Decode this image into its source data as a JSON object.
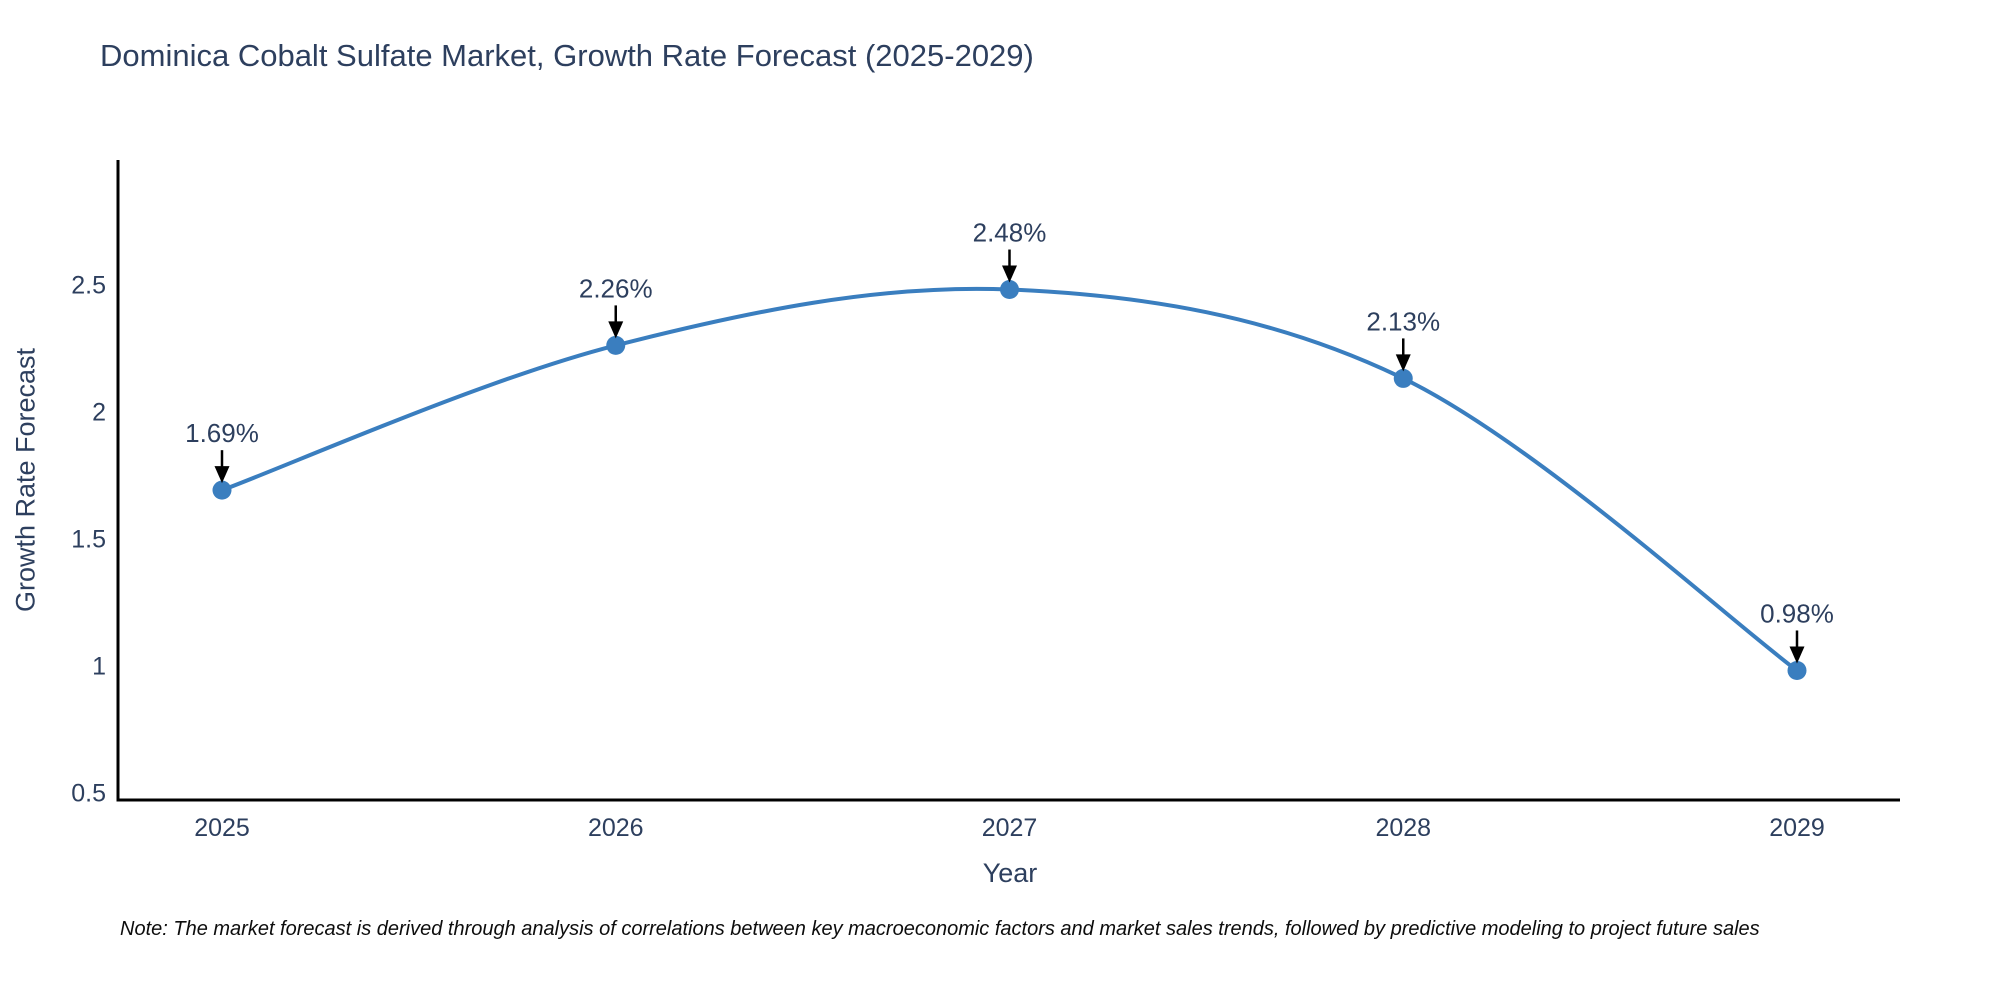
{
  "chart": {
    "title": "Dominica Cobalt Sulfate Market, Growth Rate Forecast (2025-2029)",
    "xlabel": "Year",
    "ylabel": "Growth Rate Forecast"
  },
  "note": "Note: The market forecast is derived through analysis of correlations between key macroeconomic factors and market sales trends, followed by predictive modeling to project future sales",
  "chart_data": {
    "type": "line",
    "title": "Dominica Cobalt Sulfate Market, Growth Rate Forecast (2025-2029)",
    "xlabel": "Year",
    "ylabel": "Growth Rate Forecast",
    "x": [
      2025,
      2026,
      2027,
      2028,
      2029
    ],
    "values": [
      1.69,
      2.26,
      2.48,
      2.13,
      0.98
    ],
    "point_labels": [
      "1.69%",
      "2.26%",
      "2.48%",
      "2.13%",
      "0.98%"
    ],
    "x_tick_labels": [
      "2025",
      "2026",
      "2027",
      "2028",
      "2029"
    ],
    "yticks": [
      0.5,
      1,
      1.5,
      2,
      2.5
    ],
    "ytick_labels": [
      "0.5",
      "1",
      "1.5",
      "2",
      "2.5"
    ],
    "ylim": [
      0.47,
      2.99
    ],
    "line_shape": "spline",
    "grid": false,
    "legend": null,
    "line_color": "#3a7ebf",
    "marker_color": "#3a7ebf",
    "axis_color": "#000000",
    "tick_text_color": "#2d3f5e",
    "annotation_text_color": "#2d3f5e",
    "annotation_arrow_color": "#000000"
  }
}
